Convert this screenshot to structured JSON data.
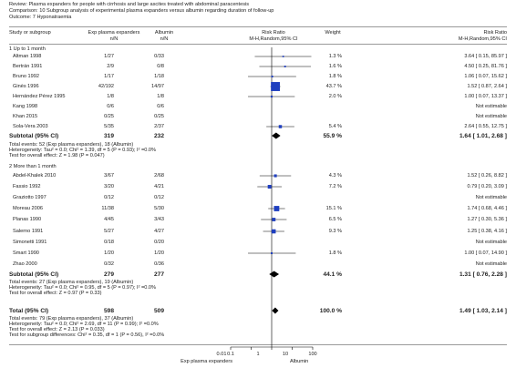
{
  "review": {
    "title": "Review:   Plasma expanders for people with cirrhosis and large ascites treated with abdominal paracentesis",
    "comparison": "Comparison:   10 Subgroup analysis of experimental plasma expanders versus albumin regarding duration of follow-up",
    "outcome": "Outcome:   7 Hyponatraemia"
  },
  "headers": {
    "study": "Study or subgroup",
    "exp": "Exp plasma expanders",
    "exp_sub": "n/N",
    "ctl": "Albumin",
    "ctl_sub": "n/N",
    "rr": "Risk Ratio",
    "rr_sub": "M-H,Random,95% CI",
    "weight": "Weight",
    "rr2": "Risk Ratio",
    "rr2_sub": "M-H,Random,95% CI"
  },
  "groups": [
    {
      "title": "1 Up to 1 month",
      "studies": [
        {
          "name": "Altman 1998",
          "exp": "1/27",
          "ctl": "0/33",
          "weight": "1.3 %",
          "ci": "3.64 [ 0.15, 85.97 ]"
        },
        {
          "name": "Bertrán 1991",
          "exp": "2/9",
          "ctl": "0/8",
          "weight": "1.6 %",
          "ci": "4.50 [ 0.25, 81.76 ]"
        },
        {
          "name": "Bruno 1992",
          "exp": "1/17",
          "ctl": "1/18",
          "weight": "1.8 %",
          "ci": "1.06 [ 0.07, 15.62 ]"
        },
        {
          "name": "Ginès 1996",
          "exp": "42/192",
          "ctl": "14/97",
          "weight": "43.7 %",
          "ci": "1.52 [ 0.87, 2.64 ]"
        },
        {
          "name": "Hernández Pérez 1995",
          "exp": "1/8",
          "ctl": "1/8",
          "weight": "2.0 %",
          "ci": "1.00 [ 0.07, 13.37 ]"
        },
        {
          "name": "Kang 1998",
          "exp": "0/6",
          "ctl": "0/6",
          "weight": "",
          "ci": "Not estimable"
        },
        {
          "name": "Khan 2015",
          "exp": "0/25",
          "ctl": "0/25",
          "weight": "",
          "ci": "Not estimable"
        },
        {
          "name": "Sola-Vera 2003",
          "exp": "5/35",
          "ctl": "2/37",
          "weight": "5.4 %",
          "ci": "2.64 [ 0.55, 12.75 ]"
        }
      ],
      "subtotal": {
        "label": "Subtotal (95% CI)",
        "exp": "319",
        "ctl": "232",
        "weight": "55.9 %",
        "ci": "1.64 [ 1.01, 2.68 ]"
      },
      "stats": [
        "Total events: 52 (Exp plasma expanders), 18 (Albumin)",
        "Heterogeneity: Tau² = 0.0; Chi² = 1.39, df = 5 (P = 0.93); I² =0.0%",
        "Test for overall effect: Z = 1.98 (P = 0.047)"
      ]
    },
    {
      "title": "2 More than 1 month",
      "studies": [
        {
          "name": "Abdel-Khalek 2010",
          "exp": "3/67",
          "ctl": "2/68",
          "weight": "4.3 %",
          "ci": "1.52 [ 0.26, 8.82 ]"
        },
        {
          "name": "Fassio 1992",
          "exp": "3/20",
          "ctl": "4/21",
          "weight": "7.2 %",
          "ci": "0.79 [ 0.20, 3.09 ]"
        },
        {
          "name": "Graziotto 1997",
          "exp": "0/12",
          "ctl": "0/12",
          "weight": "",
          "ci": "Not estimable"
        },
        {
          "name": "Moreau 2006",
          "exp": "11/38",
          "ctl": "5/30",
          "weight": "15.1 %",
          "ci": "1.74 [ 0.68, 4.46 ]"
        },
        {
          "name": "Planas 1990",
          "exp": "4/45",
          "ctl": "3/43",
          "weight": "6.5 %",
          "ci": "1.27 [ 0.30, 5.36 ]"
        },
        {
          "name": "Salerno 1991",
          "exp": "5/27",
          "ctl": "4/27",
          "weight": "9.3 %",
          "ci": "1.25 [ 0.38, 4.16 ]"
        },
        {
          "name": "Simonetti 1991",
          "exp": "0/18",
          "ctl": "0/20",
          "weight": "",
          "ci": "Not estimable"
        },
        {
          "name": "Smart 1990",
          "exp": "1/20",
          "ctl": "1/20",
          "weight": "1.8 %",
          "ci": "1.00 [ 0.07, 14.90 ]"
        },
        {
          "name": "Zhao 2000",
          "exp": "0/32",
          "ctl": "0/36",
          "weight": "",
          "ci": "Not estimable"
        }
      ],
      "subtotal": {
        "label": "Subtotal (95% CI)",
        "exp": "279",
        "ctl": "277",
        "weight": "44.1 %",
        "ci": "1.31 [ 0.76, 2.28 ]"
      },
      "stats": [
        "Total events: 27 (Exp plasma expanders), 19 (Albumin)",
        "Heterogeneity: Tau² = 0.0; Chi² = 0.95, df = 5 (P = 0.97); I² =0.0%",
        "Test for overall effect: Z = 0.97 (P = 0.33)"
      ]
    }
  ],
  "total": {
    "label": "Total (95% CI)",
    "exp": "598",
    "ctl": "509",
    "weight": "100.0 %",
    "ci": "1.49 [ 1.03, 2.14 ]"
  },
  "total_stats": [
    "Total events: 79 (Exp plasma expanders), 37 (Albumin)",
    "Heterogeneity: Tau² = 0.0; Chi² = 2.69, df = 11 (P = 0.99); I² =0.0%",
    "Test for overall effect: Z = 2.13 (P = 0.033)",
    "Test for subgroup differences: Chi² = 0.35, df = 1 (P = 0.56), I² =0.0%"
  ],
  "axis": {
    "ticks": [
      "0.01",
      "0.1",
      "1",
      "10",
      "100"
    ],
    "left_label": "Exp plasma expanders",
    "right_label": "Albumin"
  },
  "chart_data": {
    "type": "forest",
    "scale": "log",
    "xlim": [
      0.01,
      100
    ],
    "reference_line": 1,
    "groups": [
      {
        "name": "1 Up to 1 month",
        "studies": [
          {
            "study": "Altman 1998",
            "rr": 3.64,
            "lo": 0.15,
            "hi": 85.97,
            "weight": 1.3
          },
          {
            "study": "Bertrán 1991",
            "rr": 4.5,
            "lo": 0.25,
            "hi": 81.76,
            "weight": 1.6
          },
          {
            "study": "Bruno 1992",
            "rr": 1.06,
            "lo": 0.07,
            "hi": 15.62,
            "weight": 1.8
          },
          {
            "study": "Ginès 1996",
            "rr": 1.52,
            "lo": 0.87,
            "hi": 2.64,
            "weight": 43.7
          },
          {
            "study": "Hernández Pérez 1995",
            "rr": 1.0,
            "lo": 0.07,
            "hi": 13.37,
            "weight": 2.0
          },
          {
            "study": "Kang 1998",
            "rr": null,
            "lo": null,
            "hi": null,
            "weight": null
          },
          {
            "study": "Khan 2015",
            "rr": null,
            "lo": null,
            "hi": null,
            "weight": null
          },
          {
            "study": "Sola-Vera 2003",
            "rr": 2.64,
            "lo": 0.55,
            "hi": 12.75,
            "weight": 5.4
          }
        ],
        "subtotal": {
          "rr": 1.64,
          "lo": 1.01,
          "hi": 2.68,
          "weight": 55.9
        }
      },
      {
        "name": "2 More than 1 month",
        "studies": [
          {
            "study": "Abdel-Khalek 2010",
            "rr": 1.52,
            "lo": 0.26,
            "hi": 8.82,
            "weight": 4.3
          },
          {
            "study": "Fassio 1992",
            "rr": 0.79,
            "lo": 0.2,
            "hi": 3.09,
            "weight": 7.2
          },
          {
            "study": "Graziotto 1997",
            "rr": null,
            "lo": null,
            "hi": null,
            "weight": null
          },
          {
            "study": "Moreau 2006",
            "rr": 1.74,
            "lo": 0.68,
            "hi": 4.46,
            "weight": 15.1
          },
          {
            "study": "Planas 1990",
            "rr": 1.27,
            "lo": 0.3,
            "hi": 5.36,
            "weight": 6.5
          },
          {
            "study": "Salerno 1991",
            "rr": 1.25,
            "lo": 0.38,
            "hi": 4.16,
            "weight": 9.3
          },
          {
            "study": "Simonetti 1991",
            "rr": null,
            "lo": null,
            "hi": null,
            "weight": null
          },
          {
            "study": "Smart 1990",
            "rr": 1.0,
            "lo": 0.07,
            "hi": 14.9,
            "weight": 1.8
          },
          {
            "study": "Zhao 2000",
            "rr": null,
            "lo": null,
            "hi": null,
            "weight": null
          }
        ],
        "subtotal": {
          "rr": 1.31,
          "lo": 0.76,
          "hi": 2.28,
          "weight": 44.1
        }
      }
    ],
    "total": {
      "rr": 1.49,
      "lo": 1.03,
      "hi": 2.14,
      "weight": 100.0
    },
    "colors": {
      "marker": "#1f3fbf",
      "diamond": "#000000",
      "line": "#000000"
    }
  }
}
